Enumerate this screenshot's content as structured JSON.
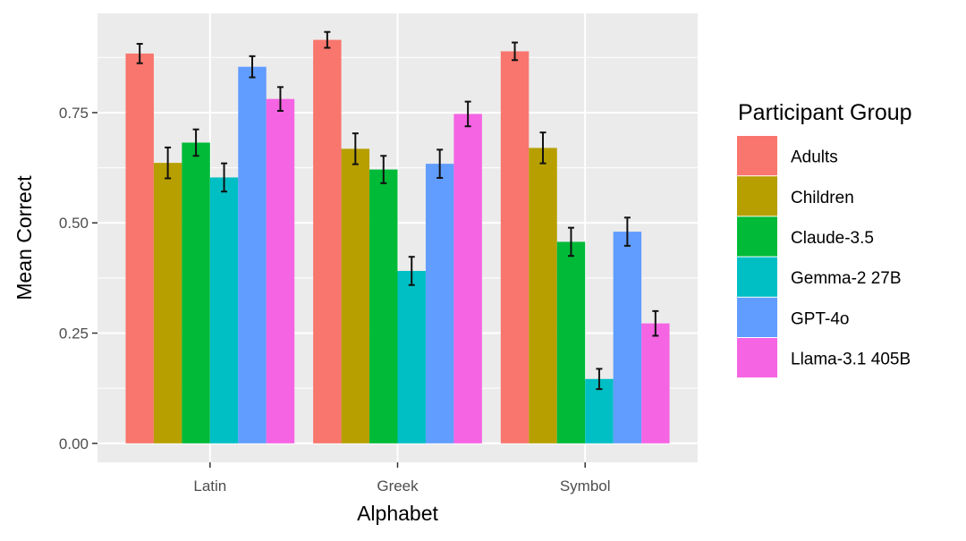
{
  "chart_data": {
    "type": "bar",
    "title": "",
    "xlabel": "Alphabet",
    "ylabel": "Mean Correct",
    "ylim": [
      -0.043,
      0.975
    ],
    "yticks": [
      0.0,
      0.25,
      0.5,
      0.75
    ],
    "ytick_labels": [
      "0.00",
      "0.25",
      "0.50",
      "0.75"
    ],
    "grid": true,
    "categories": [
      "Latin",
      "Greek",
      "Symbol"
    ],
    "legend": {
      "title": "Participant Group",
      "placement": "right"
    },
    "series": [
      {
        "name": "Adults",
        "color": "#F8766D",
        "values": [
          0.884,
          0.915,
          0.889
        ],
        "errors": [
          0.022,
          0.018,
          0.02
        ]
      },
      {
        "name": "Children",
        "color": "#B79F00",
        "values": [
          0.636,
          0.668,
          0.67
        ],
        "errors": [
          0.035,
          0.035,
          0.035
        ]
      },
      {
        "name": "Claude-3.5",
        "color": "#00BA38",
        "values": [
          0.682,
          0.621,
          0.457
        ],
        "errors": [
          0.03,
          0.031,
          0.032
        ]
      },
      {
        "name": "Gemma-2 27B",
        "color": "#00BFC4",
        "values": [
          0.603,
          0.391,
          0.146
        ],
        "errors": [
          0.032,
          0.032,
          0.023
        ]
      },
      {
        "name": "GPT-4o",
        "color": "#619CFF",
        "values": [
          0.854,
          0.634,
          0.48
        ],
        "errors": [
          0.024,
          0.032,
          0.032
        ]
      },
      {
        "name": "Llama-3.1 405B",
        "color": "#F564E3",
        "values": [
          0.781,
          0.747,
          0.272
        ],
        "errors": [
          0.027,
          0.028,
          0.028
        ]
      }
    ]
  }
}
